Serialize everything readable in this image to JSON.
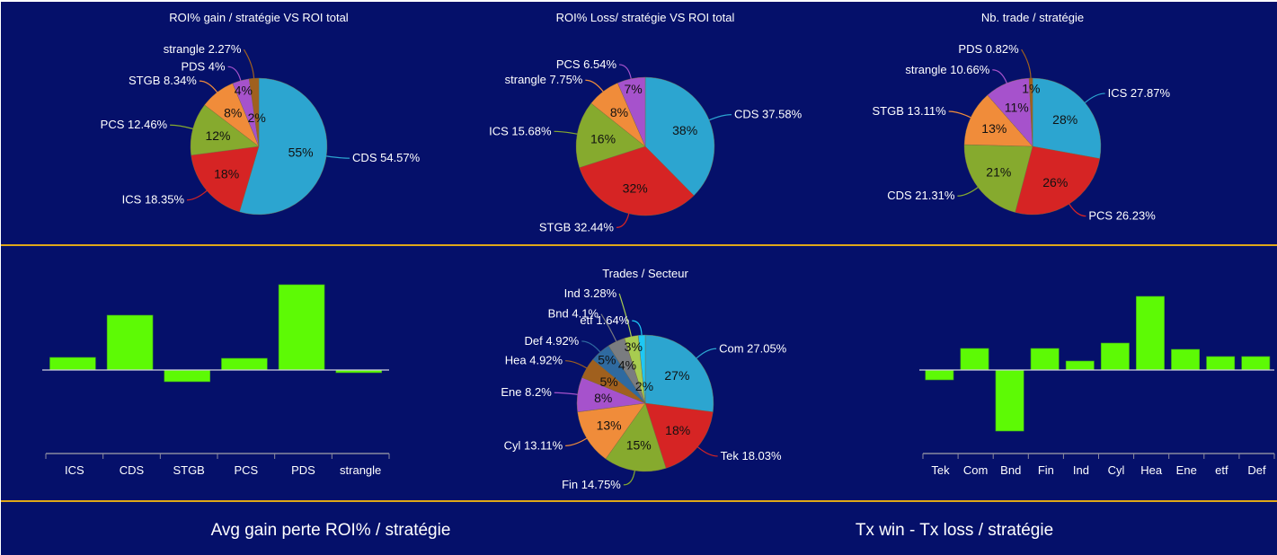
{
  "chart_data": [
    {
      "type": "pie",
      "title": "ROI% gain / stratégie VS ROI total",
      "slices": [
        {
          "label": "CDS",
          "value": 54.57,
          "color": "#2ca5d0"
        },
        {
          "label": "ICS",
          "value": 18.35,
          "color": "#d62424"
        },
        {
          "label": "PCS",
          "value": 12.46,
          "color": "#86aa2e"
        },
        {
          "label": "STGB",
          "value": 8.34,
          "color": "#f08c3a"
        },
        {
          "label": "PDS",
          "value": 4,
          "color": "#a652cc"
        },
        {
          "label": "strangle",
          "value": 2.27,
          "color": "#a0601e"
        }
      ]
    },
    {
      "type": "pie",
      "title": "ROI% Loss/ stratégie VS ROI total",
      "slices": [
        {
          "label": "CDS",
          "value": 37.58,
          "color": "#2ca5d0"
        },
        {
          "label": "STGB",
          "value": 32.44,
          "color": "#d62424"
        },
        {
          "label": "ICS",
          "value": 15.68,
          "color": "#86aa2e"
        },
        {
          "label": "strangle",
          "value": 7.75,
          "color": "#f08c3a"
        },
        {
          "label": "PCS",
          "value": 6.54,
          "color": "#a652cc"
        }
      ]
    },
    {
      "type": "pie",
      "title": "Nb. trade / stratégie",
      "slices": [
        {
          "label": "ICS",
          "value": 27.87,
          "color": "#2ca5d0"
        },
        {
          "label": "PCS",
          "value": 26.23,
          "color": "#d62424"
        },
        {
          "label": "CDS",
          "value": 21.31,
          "color": "#86aa2e"
        },
        {
          "label": "STGB",
          "value": 13.11,
          "color": "#f08c3a"
        },
        {
          "label": "strangle",
          "value": 10.66,
          "color": "#a652cc"
        },
        {
          "label": "PDS",
          "value": 0.82,
          "color": "#a0601e"
        }
      ]
    },
    {
      "type": "bar",
      "title": "",
      "categories": [
        "ICS",
        "CDS",
        "STGB",
        "PCS",
        "PDS",
        "strangle"
      ],
      "values": [
        14,
        61,
        -13,
        13,
        95,
        -3
      ],
      "ylim": [
        -93,
        95
      ],
      "color": "#5dfa05"
    },
    {
      "type": "pie",
      "title": "Trades / Secteur",
      "slices": [
        {
          "label": "Com",
          "value": 27.05,
          "color": "#2ca5d0"
        },
        {
          "label": "Tek",
          "value": 18.03,
          "color": "#d62424"
        },
        {
          "label": "Fin",
          "value": 14.75,
          "color": "#86aa2e"
        },
        {
          "label": "Cyl",
          "value": 13.11,
          "color": "#f08c3a"
        },
        {
          "label": "Ene",
          "value": 8.2,
          "color": "#a652cc"
        },
        {
          "label": "Hea",
          "value": 4.92,
          "color": "#a0601e"
        },
        {
          "label": "Def",
          "value": 4.92,
          "color": "#2f6aa0"
        },
        {
          "label": "Bnd",
          "value": 4.1,
          "color": "#7a7c80"
        },
        {
          "label": "Ind",
          "value": 3.28,
          "color": "#a8cc50"
        },
        {
          "label": "etf",
          "value": 1.64,
          "color": "#1ec8f5"
        }
      ]
    },
    {
      "type": "bar",
      "title": "",
      "categories": [
        "Tek",
        "Com",
        "Bnd",
        "Fin",
        "Ind",
        "Cyl",
        "Hea",
        "Ene",
        "etf",
        "Def"
      ],
      "values": [
        -11,
        24,
        -68,
        24,
        10,
        30,
        82,
        23,
        15,
        15
      ],
      "ylim": [
        -93,
        82
      ],
      "color": "#5dfa05"
    }
  ],
  "footer": {
    "left_title": "Avg gain perte ROI% / stratégie",
    "right_title": "Tx win - Tx loss / stratégie"
  },
  "colors": {
    "background": "#05106a",
    "divider": "#e0a818",
    "bar": "#5dfa05"
  }
}
